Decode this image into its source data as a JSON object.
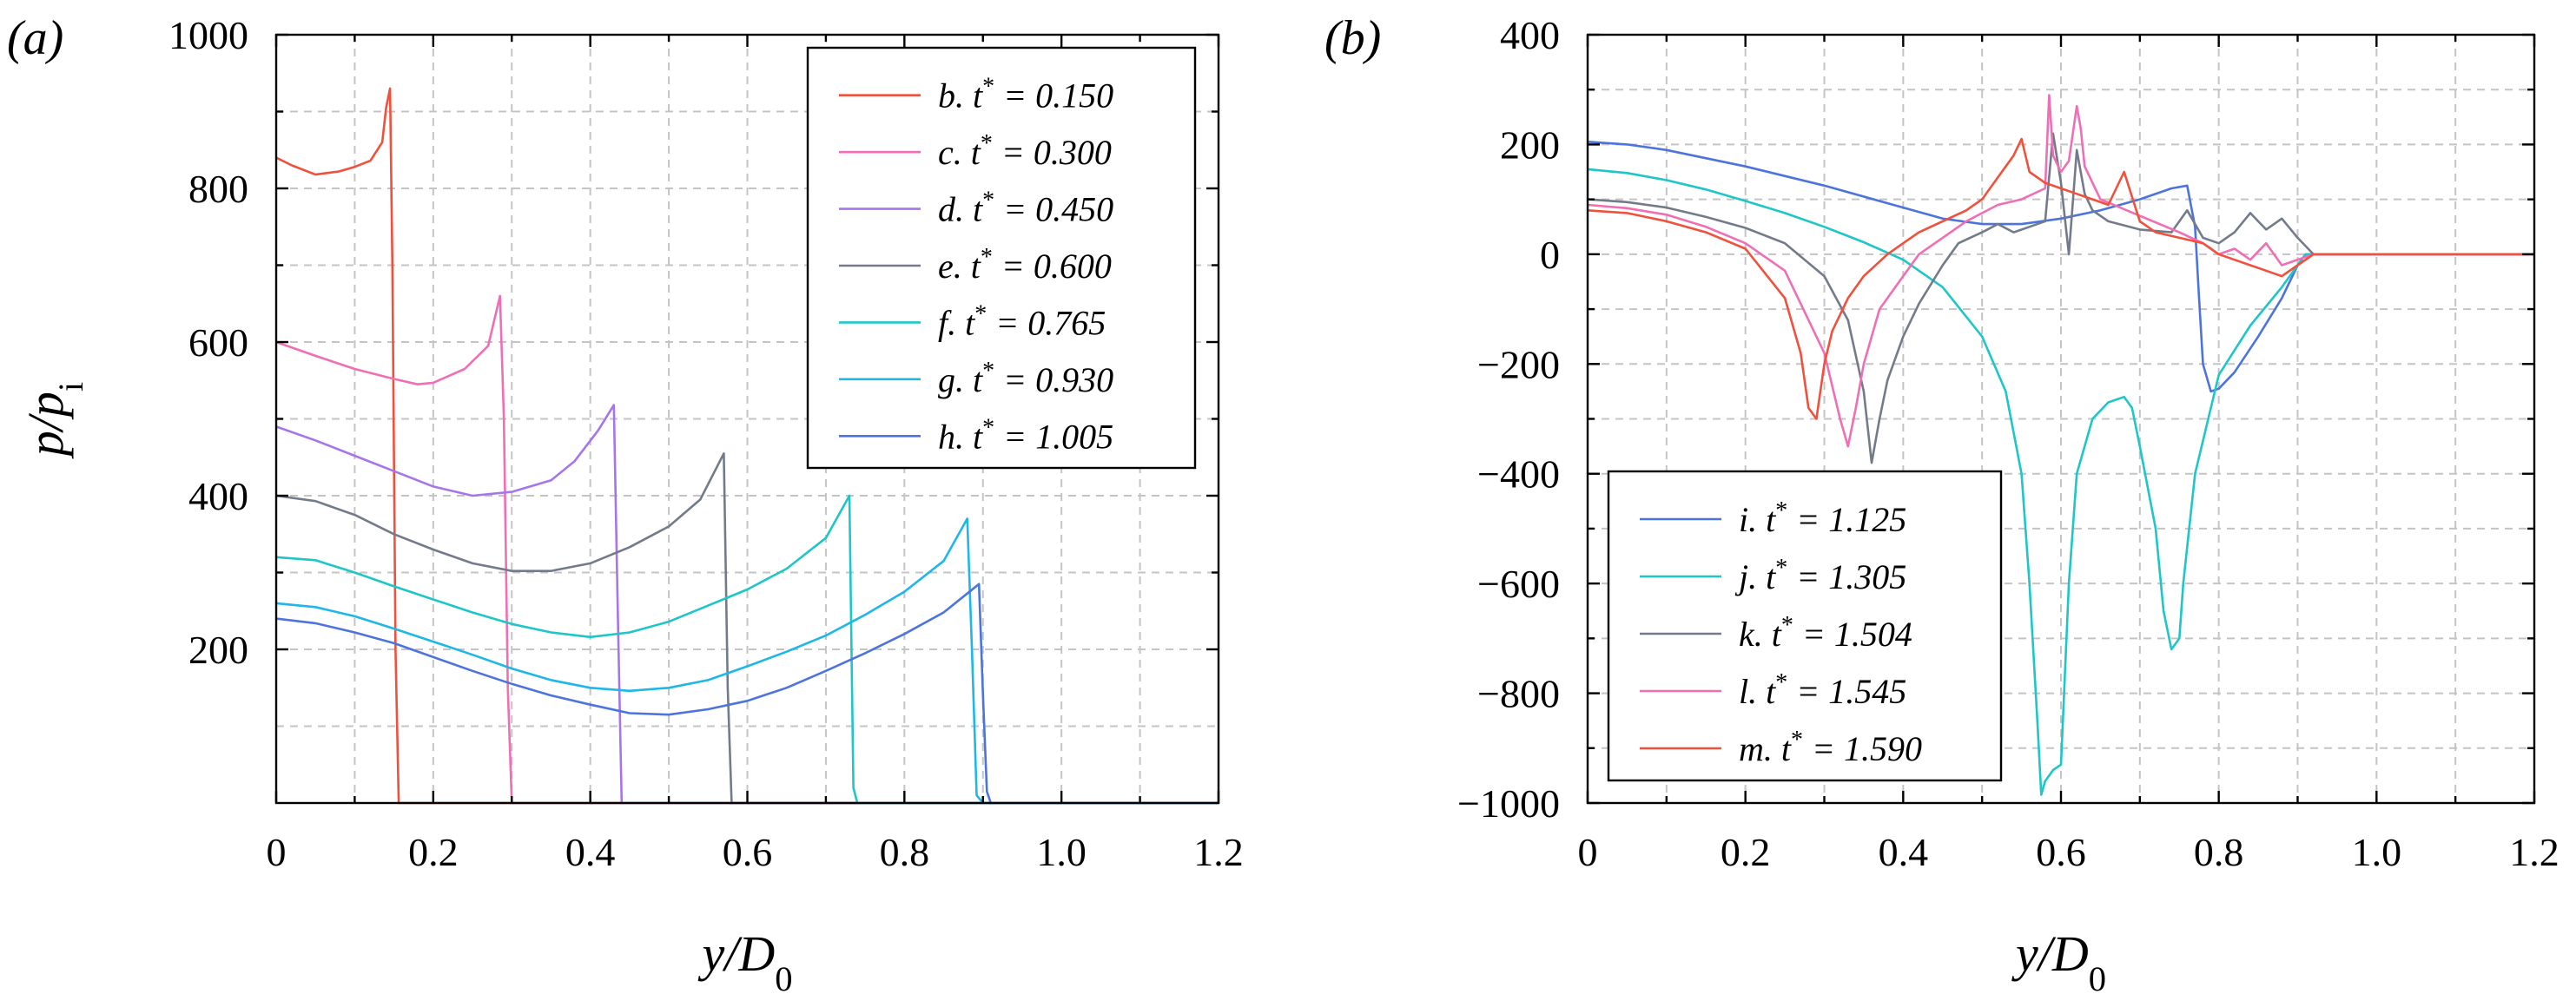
{
  "chart_data": [
    {
      "type": "line",
      "panel_label": "(a)",
      "xlabel": "y/D_0",
      "ylabel": "p/p_i",
      "xlim": [
        0,
        1.2
      ],
      "ylim": [
        0,
        1000
      ],
      "xticks": [
        0,
        0.2,
        0.4,
        0.6,
        0.8,
        1.0,
        1.2
      ],
      "xtick_labels": [
        "0",
        "0.2",
        "0.4",
        "0.6",
        "0.8",
        "1.0",
        "1.2"
      ],
      "yticks": [
        200,
        400,
        600,
        800,
        1000
      ],
      "ytick_labels": [
        "200",
        "400",
        "600",
        "800",
        "1000"
      ],
      "grid": true,
      "legend_position": "top-right",
      "series": [
        {
          "name": "b. t* = 0.150",
          "color": "#f0503c",
          "x": [
            0,
            0.02,
            0.05,
            0.08,
            0.1,
            0.12,
            0.135,
            0.14,
            0.145,
            0.148,
            0.152,
            0.156,
            1.2
          ],
          "y": [
            840,
            830,
            818,
            822,
            828,
            836,
            860,
            905,
            930,
            700,
            200,
            0,
            0
          ]
        },
        {
          "name": "c. t* = 0.300",
          "color": "#f06eb4",
          "x": [
            0,
            0.05,
            0.1,
            0.15,
            0.18,
            0.2,
            0.24,
            0.27,
            0.285,
            0.29,
            0.295,
            0.3,
            1.2
          ],
          "y": [
            600,
            582,
            565,
            552,
            545,
            547,
            565,
            595,
            660,
            500,
            150,
            0,
            0
          ]
        },
        {
          "name": "d. t* = 0.450",
          "color": "#a675ea",
          "x": [
            0,
            0.05,
            0.1,
            0.15,
            0.2,
            0.25,
            0.3,
            0.35,
            0.38,
            0.41,
            0.43,
            0.435,
            0.44,
            1.2
          ],
          "y": [
            490,
            472,
            452,
            432,
            412,
            400,
            405,
            420,
            445,
            485,
            518,
            250,
            0,
            0
          ]
        },
        {
          "name": "e. t* = 0.600",
          "color": "#737b8b",
          "x": [
            0,
            0.05,
            0.1,
            0.15,
            0.2,
            0.25,
            0.3,
            0.35,
            0.4,
            0.45,
            0.5,
            0.54,
            0.57,
            0.575,
            0.58,
            1.2
          ],
          "y": [
            400,
            393,
            375,
            350,
            330,
            312,
            302,
            302,
            312,
            333,
            360,
            395,
            455,
            150,
            0,
            0
          ]
        },
        {
          "name": "f. t* = 0.765",
          "color": "#1ec6c8",
          "x": [
            0,
            0.05,
            0.1,
            0.15,
            0.2,
            0.25,
            0.3,
            0.35,
            0.4,
            0.45,
            0.5,
            0.55,
            0.6,
            0.65,
            0.7,
            0.73,
            0.735,
            0.74,
            1.2
          ],
          "y": [
            320,
            316,
            300,
            282,
            265,
            248,
            233,
            222,
            216,
            222,
            236,
            257,
            278,
            305,
            345,
            400,
            20,
            0,
            0
          ]
        },
        {
          "name": "g. t* = 0.930",
          "color": "#1fb6e8",
          "x": [
            0,
            0.05,
            0.1,
            0.15,
            0.2,
            0.25,
            0.3,
            0.35,
            0.4,
            0.45,
            0.5,
            0.55,
            0.6,
            0.65,
            0.7,
            0.75,
            0.8,
            0.85,
            0.88,
            0.886,
            0.892,
            0.9,
            1.2
          ],
          "y": [
            260,
            255,
            243,
            227,
            210,
            193,
            175,
            160,
            150,
            146,
            150,
            160,
            178,
            197,
            218,
            245,
            275,
            315,
            370,
            200,
            10,
            0,
            0
          ]
        },
        {
          "name": "h. t* = 1.005",
          "color": "#4d74dc",
          "x": [
            0,
            0.05,
            0.1,
            0.15,
            0.2,
            0.25,
            0.3,
            0.35,
            0.4,
            0.45,
            0.5,
            0.55,
            0.6,
            0.65,
            0.7,
            0.75,
            0.8,
            0.85,
            0.895,
            0.9,
            0.905,
            0.91,
            1.2
          ],
          "y": [
            240,
            234,
            222,
            208,
            190,
            172,
            155,
            140,
            128,
            117,
            115,
            122,
            133,
            150,
            172,
            195,
            220,
            248,
            285,
            140,
            15,
            0,
            0
          ]
        }
      ]
    },
    {
      "type": "line",
      "panel_label": "(b)",
      "xlabel": "y/D_0",
      "ylabel": "",
      "xlim": [
        0,
        1.2
      ],
      "ylim": [
        -1000,
        400
      ],
      "xticks": [
        0,
        0.2,
        0.4,
        0.6,
        0.8,
        1.0,
        1.2
      ],
      "xtick_labels": [
        "0",
        "0.2",
        "0.4",
        "0.6",
        "0.8",
        "1.0",
        "1.2"
      ],
      "yticks": [
        -1000,
        -800,
        -600,
        -400,
        -200,
        0,
        200,
        400
      ],
      "ytick_labels": [
        "−1000",
        "−800",
        "−600",
        "−400",
        "−200",
        "0",
        "200",
        "400"
      ],
      "grid": true,
      "legend_position": "bottom-left",
      "series": [
        {
          "name": "i. t* = 1.125",
          "color": "#4d74dc",
          "x": [
            0,
            0.05,
            0.1,
            0.2,
            0.3,
            0.4,
            0.45,
            0.5,
            0.55,
            0.6,
            0.65,
            0.7,
            0.74,
            0.76,
            0.77,
            0.775,
            0.78,
            0.79,
            0.8,
            0.82,
            0.85,
            0.88,
            0.9,
            0.91,
            1.2
          ],
          "y": [
            205,
            200,
            190,
            160,
            125,
            85,
            65,
            55,
            55,
            65,
            80,
            100,
            120,
            125,
            50,
            -80,
            -200,
            -250,
            -245,
            -215,
            -150,
            -80,
            -20,
            0,
            0
          ]
        },
        {
          "name": "j. t* = 1.305",
          "color": "#1ec6c8",
          "x": [
            0,
            0.05,
            0.1,
            0.15,
            0.2,
            0.25,
            0.3,
            0.35,
            0.4,
            0.45,
            0.5,
            0.53,
            0.55,
            0.56,
            0.57,
            0.575,
            0.58,
            0.59,
            0.6,
            0.61,
            0.62,
            0.64,
            0.66,
            0.68,
            0.69,
            0.7,
            0.72,
            0.73,
            0.74,
            0.75,
            0.755,
            0.77,
            0.8,
            0.84,
            0.88,
            0.91,
            1.2
          ],
          "y": [
            155,
            148,
            135,
            118,
            97,
            75,
            50,
            22,
            -10,
            -60,
            -150,
            -250,
            -400,
            -600,
            -850,
            -985,
            -960,
            -940,
            -930,
            -600,
            -400,
            -300,
            -270,
            -260,
            -280,
            -350,
            -500,
            -650,
            -720,
            -700,
            -600,
            -400,
            -220,
            -130,
            -60,
            0,
            0
          ]
        },
        {
          "name": "k. t* = 1.504",
          "color": "#737b8b",
          "x": [
            0,
            0.05,
            0.1,
            0.15,
            0.2,
            0.25,
            0.3,
            0.33,
            0.35,
            0.36,
            0.37,
            0.38,
            0.4,
            0.42,
            0.45,
            0.47,
            0.5,
            0.52,
            0.54,
            0.56,
            0.58,
            0.59,
            0.6,
            0.61,
            0.62,
            0.63,
            0.64,
            0.66,
            0.7,
            0.74,
            0.76,
            0.78,
            0.8,
            0.82,
            0.84,
            0.86,
            0.88,
            0.9,
            0.92,
            1.2
          ],
          "y": [
            100,
            95,
            85,
            68,
            48,
            20,
            -40,
            -120,
            -250,
            -380,
            -300,
            -230,
            -150,
            -90,
            -20,
            20,
            40,
            55,
            40,
            50,
            60,
            220,
            130,
            0,
            190,
            110,
            80,
            60,
            45,
            40,
            80,
            30,
            20,
            40,
            75,
            45,
            65,
            30,
            0,
            0
          ]
        },
        {
          "name": "l. t* = 1.545",
          "color": "#f06eb4",
          "x": [
            0,
            0.05,
            0.1,
            0.15,
            0.2,
            0.25,
            0.3,
            0.32,
            0.33,
            0.34,
            0.35,
            0.37,
            0.4,
            0.42,
            0.45,
            0.48,
            0.5,
            0.52,
            0.55,
            0.58,
            0.585,
            0.59,
            0.6,
            0.61,
            0.62,
            0.625,
            0.63,
            0.65,
            0.7,
            0.75,
            0.78,
            0.8,
            0.82,
            0.84,
            0.86,
            0.88,
            0.9,
            0.92,
            1.2
          ],
          "y": [
            90,
            84,
            72,
            50,
            20,
            -30,
            -180,
            -300,
            -350,
            -280,
            -200,
            -100,
            -40,
            0,
            30,
            60,
            75,
            90,
            100,
            120,
            290,
            180,
            150,
            170,
            270,
            230,
            160,
            100,
            70,
            40,
            20,
            0,
            10,
            -10,
            20,
            -20,
            -10,
            0,
            0
          ]
        },
        {
          "name": "m. t* = 1.590",
          "color": "#f0503c",
          "x": [
            0,
            0.05,
            0.1,
            0.15,
            0.2,
            0.25,
            0.27,
            0.28,
            0.29,
            0.3,
            0.31,
            0.33,
            0.35,
            0.38,
            0.4,
            0.42,
            0.45,
            0.48,
            0.5,
            0.52,
            0.54,
            0.55,
            0.56,
            0.58,
            0.6,
            0.62,
            0.64,
            0.66,
            0.68,
            0.7,
            0.72,
            0.75,
            0.78,
            0.8,
            0.82,
            0.84,
            0.86,
            0.88,
            0.9,
            0.92,
            1.2
          ],
          "y": [
            80,
            75,
            60,
            40,
            10,
            -80,
            -180,
            -280,
            -300,
            -200,
            -140,
            -80,
            -40,
            0,
            20,
            40,
            60,
            80,
            100,
            140,
            180,
            210,
            150,
            130,
            120,
            110,
            100,
            90,
            150,
            60,
            40,
            30,
            20,
            0,
            -10,
            -20,
            -30,
            -40,
            -20,
            0,
            0
          ]
        }
      ]
    }
  ]
}
